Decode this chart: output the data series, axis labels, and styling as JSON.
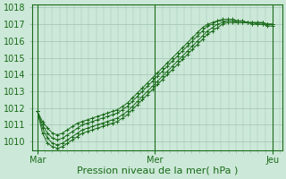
{
  "bg_color": "#cce8d8",
  "grid_color": "#a0c4b0",
  "line_color": "#1a6b1a",
  "marker_color": "#1a6b1a",
  "xlabel": "Pression niveau de la mer( hPa )",
  "xlabel_fontsize": 8,
  "tick_fontsize": 7,
  "ylim": [
    1009.5,
    1018.2
  ],
  "yticks": [
    1010,
    1011,
    1012,
    1013,
    1014,
    1015,
    1016,
    1017,
    1018
  ],
  "xlim": [
    -2,
    100
  ],
  "xtick_labels": [
    "Mar",
    "Mer",
    "Jeu"
  ],
  "xtick_positions": [
    0,
    48,
    96
  ],
  "series": [
    [
      1011.8,
      1011.2,
      1010.8,
      1010.5,
      1010.4,
      1010.5,
      1010.7,
      1010.9,
      1011.1,
      1011.2,
      1011.3,
      1011.4,
      1011.5,
      1011.6,
      1011.7,
      1011.8,
      1011.9,
      1012.1,
      1012.3,
      1012.6,
      1012.9,
      1013.2,
      1013.5,
      1013.8,
      1014.1,
      1014.4,
      1014.7,
      1015.0,
      1015.3,
      1015.6,
      1015.9,
      1016.2,
      1016.5,
      1016.8,
      1017.0,
      1017.1,
      1017.2,
      1017.2,
      1017.2,
      1017.2,
      1017.1,
      1017.1,
      1017.1,
      1017.1,
      1017.1,
      1017.1,
      1017.0,
      1017.0
    ],
    [
      1011.8,
      1011.0,
      1010.5,
      1010.2,
      1010.1,
      1010.2,
      1010.4,
      1010.6,
      1010.8,
      1011.0,
      1011.1,
      1011.2,
      1011.3,
      1011.4,
      1011.5,
      1011.6,
      1011.7,
      1011.9,
      1012.1,
      1012.4,
      1012.7,
      1013.0,
      1013.3,
      1013.6,
      1013.9,
      1014.2,
      1014.5,
      1014.8,
      1015.1,
      1015.4,
      1015.7,
      1016.0,
      1016.3,
      1016.6,
      1016.9,
      1017.0,
      1017.2,
      1017.3,
      1017.3,
      1017.3,
      1017.2,
      1017.2,
      1017.1,
      1017.1,
      1017.1,
      1017.1,
      1017.0,
      1017.0
    ],
    [
      1011.8,
      1010.8,
      1010.2,
      1009.9,
      1009.8,
      1009.9,
      1010.1,
      1010.3,
      1010.5,
      1010.7,
      1010.8,
      1010.9,
      1011.0,
      1011.1,
      1011.2,
      1011.3,
      1011.4,
      1011.6,
      1011.8,
      1012.1,
      1012.4,
      1012.7,
      1013.0,
      1013.3,
      1013.6,
      1013.9,
      1014.2,
      1014.5,
      1014.8,
      1015.1,
      1015.4,
      1015.7,
      1016.0,
      1016.3,
      1016.6,
      1016.8,
      1017.0,
      1017.1,
      1017.2,
      1017.2,
      1017.2,
      1017.2,
      1017.1,
      1017.1,
      1017.0,
      1017.0,
      1017.0,
      1017.0
    ],
    [
      1011.8,
      1010.5,
      1009.9,
      1009.7,
      1009.6,
      1009.7,
      1009.9,
      1010.1,
      1010.3,
      1010.5,
      1010.6,
      1010.7,
      1010.8,
      1010.9,
      1011.0,
      1011.1,
      1011.2,
      1011.4,
      1011.6,
      1011.9,
      1012.2,
      1012.5,
      1012.8,
      1013.1,
      1013.4,
      1013.7,
      1014.0,
      1014.3,
      1014.6,
      1014.9,
      1015.2,
      1015.5,
      1015.8,
      1016.1,
      1016.4,
      1016.6,
      1016.8,
      1017.0,
      1017.1,
      1017.1,
      1017.1,
      1017.1,
      1017.1,
      1017.0,
      1017.0,
      1017.0,
      1016.9,
      1016.9
    ]
  ],
  "n_points_per_day": 48
}
